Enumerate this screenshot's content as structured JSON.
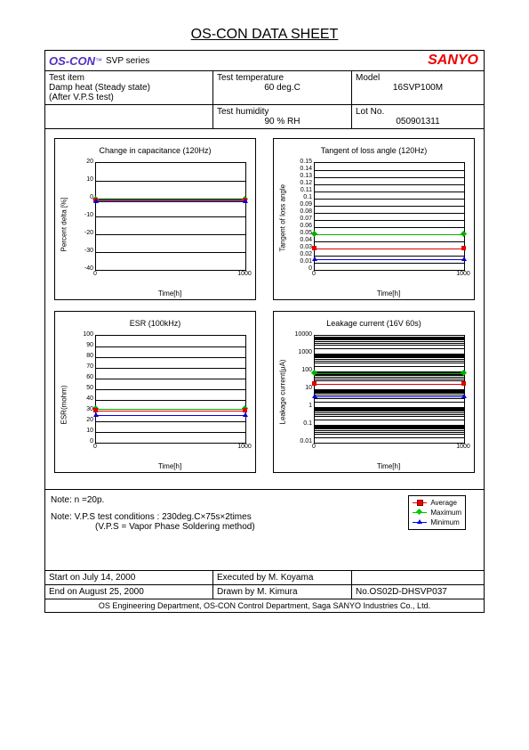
{
  "title": "OS-CON DATA SHEET",
  "brand": "OS-CON",
  "series": "SVP series",
  "sanyo": "SANYO",
  "hdr": {
    "test_item_lbl": "Test item",
    "test_item_v1": "Damp heat  (Steady state)",
    "test_item_v2": "(After V.P.S test)",
    "test_temp_lbl": "Test temperature",
    "test_temp_v": "60 deg.C",
    "model_lbl": "Model",
    "model_v": "16SVP100M",
    "test_hum_lbl": "Test humidity",
    "test_hum_v": "90 % RH",
    "lot_lbl": "Lot No.",
    "lot_v": "050901311"
  },
  "charts": {
    "cap": {
      "title": "Change in capacitance (120Hz)",
      "ylabel": "Percent delta [%]",
      "xlabel": "Time[h]",
      "ylim": [
        -40,
        20
      ],
      "ytick_step": 10,
      "xlim": [
        0,
        1000
      ],
      "xticks": [
        0,
        1000
      ],
      "series": {
        "avg": {
          "color": "#e00000",
          "y": -1
        },
        "max": {
          "color": "#00b000",
          "y": -0.5
        },
        "min": {
          "color": "#0000e0",
          "y": -1.5
        }
      }
    },
    "tan": {
      "title": "Tangent of loss angle (120Hz)",
      "ylabel": "Tangent of loss angle",
      "xlabel": "Time[h]",
      "ylim": [
        0,
        0.15
      ],
      "ytick_step": 0.01,
      "xlim": [
        0,
        1000
      ],
      "xticks": [
        0,
        1000
      ],
      "series": {
        "avg": {
          "color": "#e00000",
          "y": 0.03
        },
        "max": {
          "color": "#00b000",
          "y": 0.05
        },
        "min": {
          "color": "#0000e0",
          "y": 0.015
        }
      }
    },
    "esr": {
      "title": "ESR (100kHz)",
      "ylabel": "ESR(mohm)",
      "xlabel": "Time[h]",
      "ylim": [
        0,
        100
      ],
      "ytick_step": 10,
      "xlim": [
        0,
        1000
      ],
      "xticks": [
        0,
        1000
      ],
      "series": {
        "avg": {
          "color": "#e00000",
          "y": 30
        },
        "max": {
          "color": "#00b000",
          "y": 32
        },
        "min": {
          "color": "#0000e0",
          "y": 26
        }
      }
    },
    "leak": {
      "title": "Leakage current (16V 60s)",
      "ylabel": "Leakage current(μA)",
      "xlabel": "Time[h]",
      "scale": "log",
      "ylim": [
        0.01,
        10000
      ],
      "yticks": [
        0.01,
        0.1,
        1,
        10,
        100,
        1000,
        10000
      ],
      "xlim": [
        0,
        1000
      ],
      "xticks": [
        0,
        1000
      ],
      "series": {
        "avg": {
          "color": "#e00000",
          "y": 20
        },
        "max": {
          "color": "#00b000",
          "y": 80
        },
        "min": {
          "color": "#0000e0",
          "y": 4
        }
      }
    }
  },
  "notes": {
    "n1": "Note:      n =20p.",
    "n2": "Note:  V.P.S test conditions : 230deg.C×75s×2times",
    "n3": "(V.P.S = Vapor Phase Soldering method)"
  },
  "legend": {
    "avg": "Average",
    "max": "Maximum",
    "min": "Minimum",
    "colors": {
      "avg": "#e00000",
      "max": "#00b000",
      "min": "#0000e0"
    }
  },
  "footer": {
    "start": "Start on July 14, 2000",
    "end": "End on August 25, 2000",
    "exec": "Executed by M. Koyama",
    "drawn": "Drawn by M. Kimura",
    "no": "No.OS02D-DHSVP037",
    "dept": "OS Engineering Department, OS-CON Control Department, Saga SANYO Industries Co., Ltd."
  },
  "style": {
    "border_color": "#000000",
    "bg": "#ffffff",
    "font_small": 8,
    "font_tick": 7
  }
}
